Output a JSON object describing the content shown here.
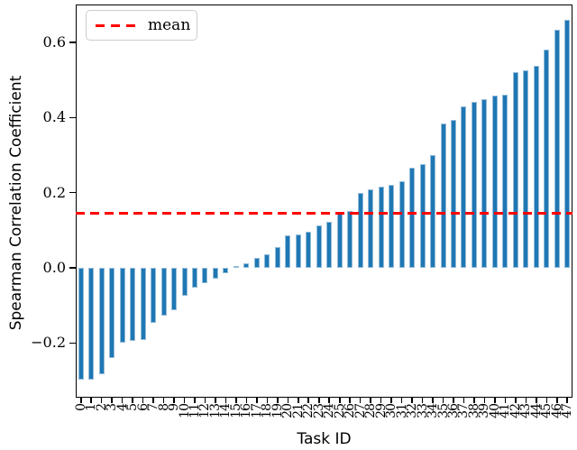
{
  "figure": {
    "ylabel": "Spearman Correlation Coefficient",
    "xlabel": "Task ID",
    "legend": {
      "label": "mean"
    }
  },
  "chart_data": {
    "type": "bar",
    "title": "",
    "xlabel": "Task ID",
    "ylabel": "Spearman Correlation Coefficient",
    "categories": [
      "0",
      "1",
      "2",
      "3",
      "4",
      "5",
      "6",
      "7",
      "8",
      "9",
      "10",
      "11",
      "12",
      "13",
      "14",
      "15",
      "16",
      "17",
      "18",
      "19",
      "20",
      "21",
      "22",
      "23",
      "24",
      "25",
      "26",
      "27",
      "28",
      "29",
      "30",
      "31",
      "32",
      "33",
      "34",
      "35",
      "36",
      "37",
      "38",
      "39",
      "40",
      "41",
      "42",
      "43",
      "44",
      "45",
      "46",
      "47"
    ],
    "values": [
      -0.298,
      -0.297,
      -0.284,
      -0.239,
      -0.199,
      -0.195,
      -0.193,
      -0.147,
      -0.127,
      -0.114,
      -0.074,
      -0.054,
      -0.041,
      -0.03,
      -0.015,
      0.006,
      0.011,
      0.027,
      0.037,
      0.056,
      0.086,
      0.089,
      0.097,
      0.113,
      0.122,
      0.146,
      0.151,
      0.199,
      0.209,
      0.215,
      0.222,
      0.23,
      0.266,
      0.277,
      0.299,
      0.385,
      0.394,
      0.429,
      0.442,
      0.449,
      0.458,
      0.461,
      0.521,
      0.526,
      0.537,
      0.582,
      0.634,
      0.661
    ],
    "bar_color": "#1f77b4",
    "mean_line": {
      "label": "mean",
      "value": 0.146,
      "color": "#ff0000",
      "style": "dashed"
    },
    "yticks": [
      {
        "value": -0.2,
        "label": "−0.2"
      },
      {
        "value": 0.0,
        "label": "0.0"
      },
      {
        "value": 0.2,
        "label": "0.2"
      },
      {
        "value": 0.4,
        "label": "0.4"
      },
      {
        "value": 0.6,
        "label": "0.6"
      }
    ],
    "ylim": [
      -0.346,
      0.701
    ],
    "xtick_rotation": 90,
    "grid": false,
    "legend_position": "upper left"
  }
}
